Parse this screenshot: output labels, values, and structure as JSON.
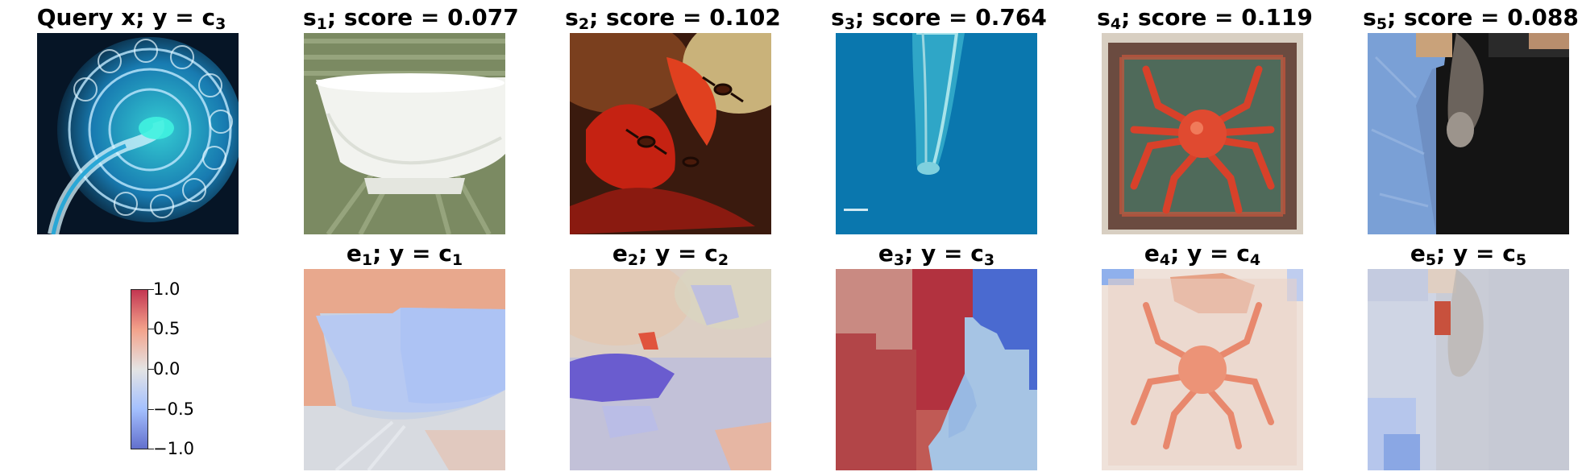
{
  "query": {
    "title_main": "Query x; y = c",
    "title_sub": "3",
    "image_icon": "spiral-plankton-image"
  },
  "samples": [
    {
      "label_main": "s",
      "label_sub": "1",
      "score_text": "; score = 0.077",
      "score": 0.077,
      "image_icon": "white-bowl-image"
    },
    {
      "label_main": "s",
      "label_sub": "2",
      "score_text": "; score = 0.102",
      "score": 0.102,
      "image_icon": "ants-on-red-flower-image"
    },
    {
      "label_main": "s",
      "label_sub": "3",
      "score_text": "; score = 0.764",
      "score": 0.764,
      "image_icon": "blue-micro-organism-image"
    },
    {
      "label_main": "s",
      "label_sub": "4",
      "score_text": "; score = 0.119",
      "score": 0.119,
      "image_icon": "red-crab-on-board-image"
    },
    {
      "label_main": "s",
      "label_sub": "5",
      "score_text": "; score = 0.088",
      "score": 0.088,
      "image_icon": "ferret-on-jeans-image"
    }
  ],
  "explanations": [
    {
      "label_main": "e",
      "label_sub": "1",
      "class_text": "; y = c",
      "class_sub": "1",
      "image_icon": "bowl-heatmap-image"
    },
    {
      "label_main": "e",
      "label_sub": "2",
      "class_text": "; y = c",
      "class_sub": "2",
      "image_icon": "flower-heatmap-image"
    },
    {
      "label_main": "e",
      "label_sub": "3",
      "class_text": "; y = c",
      "class_sub": "3",
      "image_icon": "organism-heatmap-image"
    },
    {
      "label_main": "e",
      "label_sub": "4",
      "class_text": "; y = c",
      "class_sub": "4",
      "image_icon": "crab-heatmap-image"
    },
    {
      "label_main": "e",
      "label_sub": "5",
      "class_text": "; y = c",
      "class_sub": "5",
      "image_icon": "ferret-heatmap-image"
    }
  ],
  "colorbar": {
    "colormap": "coolwarm",
    "low_color": "#3b4cc0",
    "mid_color": "#dddddd",
    "high_color": "#b40426",
    "tick_labels": [
      "1.0",
      "0.5",
      "0.0",
      "−0.5",
      "−1.0"
    ]
  }
}
